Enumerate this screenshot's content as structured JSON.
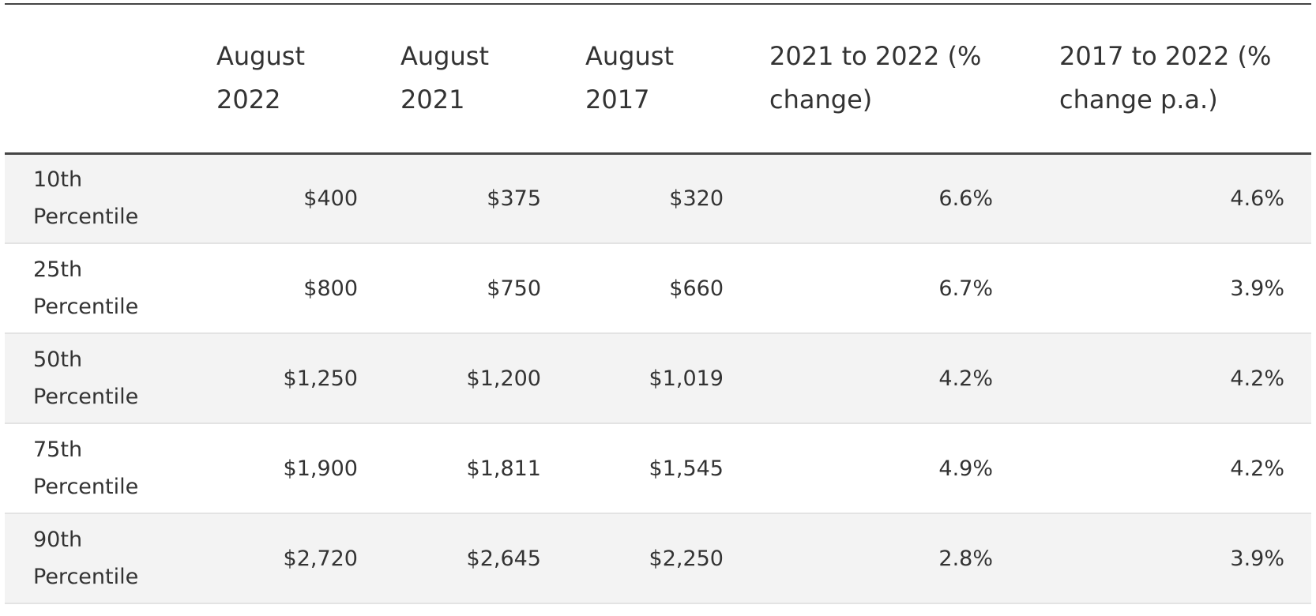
{
  "table": {
    "headers": [
      "",
      "August 2022",
      "August 2021",
      "August 2017",
      "2021 to 2022 (% change)",
      "2017 to 2022 (% change p.a.)"
    ],
    "rows": [
      {
        "label": "10th Percentile",
        "cells": [
          "$400",
          "$375",
          "$320",
          "6.6%",
          "4.6%"
        ]
      },
      {
        "label": "25th Percentile",
        "cells": [
          "$800",
          "$750",
          "$660",
          "6.7%",
          "3.9%"
        ]
      },
      {
        "label": "50th Percentile",
        "cells": [
          "$1,250",
          "$1,200",
          "$1,019",
          "4.2%",
          "4.2%"
        ]
      },
      {
        "label": "75th Percentile",
        "cells": [
          "$1,900",
          "$1,811",
          "$1,545",
          "4.9%",
          "4.2%"
        ]
      },
      {
        "label": "90th Percentile",
        "cells": [
          "$2,720",
          "$2,645",
          "$2,250",
          "2.8%",
          "3.9%"
        ]
      }
    ]
  }
}
